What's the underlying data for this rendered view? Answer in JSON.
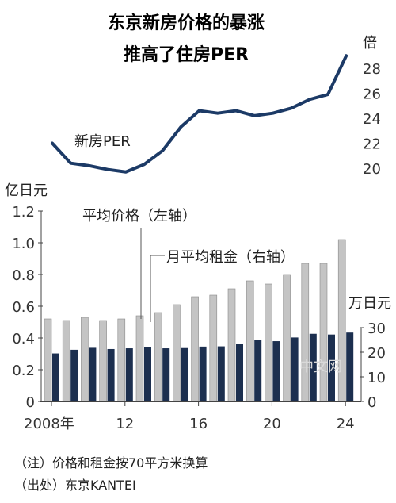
{
  "title_lines": [
    "东京新房价格的暴涨",
    "推高了住房PER"
  ],
  "notes": [
    "（注）价格和租金按70平方米换算",
    "（出处）东京KANTEI"
  ],
  "watermark": "中文网",
  "colors": {
    "price_bar": "#c4c4c4",
    "rent_bar": "#1c2f4f",
    "per_line": "#1c3a66",
    "axis": "#444444"
  },
  "chart_data": [
    {
      "type": "line",
      "series": [
        {
          "name": "新房PER",
          "x": [
            2008,
            2009,
            2010,
            2011,
            2012,
            2013,
            2014,
            2015,
            2016,
            2017,
            2018,
            2019,
            2020,
            2021,
            2022,
            2023,
            2024
          ],
          "values": [
            22.0,
            20.4,
            20.2,
            19.9,
            19.7,
            20.3,
            21.4,
            23.3,
            24.6,
            24.4,
            24.6,
            24.2,
            24.4,
            24.8,
            25.5,
            25.9,
            29.0
          ]
        }
      ],
      "y_unit": "倍",
      "yticks": [
        "20",
        "22",
        "24",
        "26",
        "28"
      ],
      "ylim": [
        19,
        30
      ]
    },
    {
      "type": "bar",
      "x": [
        2008,
        2009,
        2010,
        2011,
        2012,
        2013,
        2014,
        2015,
        2016,
        2017,
        2018,
        2019,
        2020,
        2021,
        2022,
        2023,
        2024
      ],
      "x_tick_labels": [
        "2008年",
        "12",
        "16",
        "20",
        "24"
      ],
      "series": [
        {
          "name": "平均价格（左轴）",
          "axis": "left",
          "values": [
            0.52,
            0.51,
            0.53,
            0.51,
            0.52,
            0.54,
            0.56,
            0.61,
            0.66,
            0.67,
            0.71,
            0.76,
            0.74,
            0.8,
            0.87,
            0.87,
            1.02
          ]
        },
        {
          "name": "月平均租金（右轴）",
          "axis": "right",
          "values": [
            19.5,
            21.0,
            21.8,
            21.3,
            21.6,
            22.0,
            21.6,
            21.7,
            22.3,
            22.4,
            23.5,
            25.0,
            24.5,
            26.0,
            27.5,
            27.2,
            28.0
          ]
        }
      ],
      "left_axis": {
        "unit": "亿日元",
        "ticks": [
          "0",
          "0.2",
          "0.4",
          "0.6",
          "0.8",
          "1.0",
          "1.2"
        ],
        "ylim": [
          0,
          1.3
        ]
      },
      "right_axis": {
        "unit": "万日元",
        "ticks": [
          "0",
          "10",
          "20",
          "30"
        ],
        "ylim": [
          0,
          35
        ]
      }
    }
  ]
}
